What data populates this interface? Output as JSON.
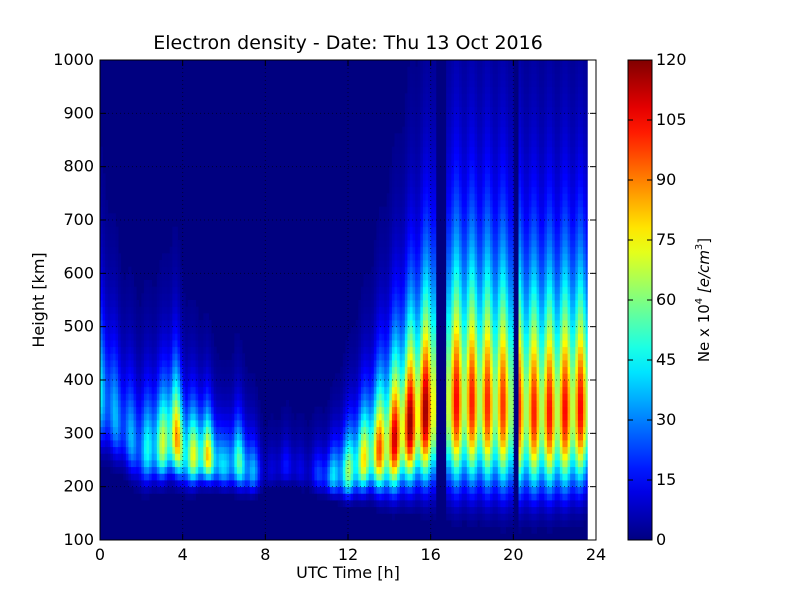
{
  "chart_data": {
    "type": "heatmap",
    "title": "Electron density - Date: Thu 13 Oct 2016",
    "xlabel": "UTC Time [h]",
    "ylabel": "Height [km]",
    "xlim": [
      0,
      24
    ],
    "ylim": [
      100,
      1000
    ],
    "x_ticks": [
      "0",
      "4",
      "8",
      "12",
      "16",
      "20",
      "24"
    ],
    "y_ticks": [
      "100",
      "200",
      "300",
      "400",
      "500",
      "600",
      "700",
      "800",
      "900",
      "1000"
    ],
    "grid": true,
    "colormap": "jet",
    "colorbar": {
      "label_prefix": "Ne x 10",
      "label_exp": "4",
      "label_unit": "[e/cm",
      "label_unit_exp": "3",
      "label_close": "]",
      "range": [
        0,
        120
      ],
      "ticks": [
        "0",
        "15",
        "30",
        "45",
        "60",
        "75",
        "90",
        "105",
        "120"
      ]
    },
    "data_extent_hours": [
      0,
      23.6
    ],
    "gap_hours": [
      16.35,
      16.6,
      20.15
    ],
    "profile_model": "Chapman-like vertical profiles; peak height (km), peak density (Ne x 10^4 e/cm^3), scale height (km) per UTC hour",
    "profiles": [
      {
        "t": 0.0,
        "hmax": 380,
        "nmax": 45,
        "H": 60
      },
      {
        "t": 1.0,
        "hmax": 320,
        "nmax": 35,
        "H": 45
      },
      {
        "t": 2.0,
        "hmax": 270,
        "nmax": 40,
        "H": 40
      },
      {
        "t": 3.0,
        "hmax": 280,
        "nmax": 70,
        "H": 40
      },
      {
        "t": 3.6,
        "hmax": 300,
        "nmax": 95,
        "H": 45
      },
      {
        "t": 4.2,
        "hmax": 260,
        "nmax": 70,
        "H": 35
      },
      {
        "t": 5.2,
        "hmax": 260,
        "nmax": 85,
        "H": 30
      },
      {
        "t": 6.0,
        "hmax": 240,
        "nmax": 40,
        "H": 25
      },
      {
        "t": 6.6,
        "hmax": 250,
        "nmax": 60,
        "H": 30
      },
      {
        "t": 7.3,
        "hmax": 230,
        "nmax": 45,
        "H": 25
      },
      {
        "t": 8.0,
        "hmax": 230,
        "nmax": 8,
        "H": 20
      },
      {
        "t": 9.0,
        "hmax": 240,
        "nmax": 18,
        "H": 20
      },
      {
        "t": 10.0,
        "hmax": 230,
        "nmax": 10,
        "H": 20
      },
      {
        "t": 11.0,
        "hmax": 220,
        "nmax": 35,
        "H": 20
      },
      {
        "t": 12.0,
        "hmax": 230,
        "nmax": 65,
        "H": 30
      },
      {
        "t": 13.0,
        "hmax": 260,
        "nmax": 85,
        "H": 40
      },
      {
        "t": 14.0,
        "hmax": 280,
        "nmax": 110,
        "H": 55
      },
      {
        "t": 15.0,
        "hmax": 320,
        "nmax": 120,
        "H": 70
      },
      {
        "t": 16.0,
        "hmax": 350,
        "nmax": 118,
        "H": 85
      },
      {
        "t": 17.0,
        "hmax": 360,
        "nmax": 108,
        "H": 95
      },
      {
        "t": 18.0,
        "hmax": 360,
        "nmax": 104,
        "H": 95
      },
      {
        "t": 19.0,
        "hmax": 355,
        "nmax": 102,
        "H": 95
      },
      {
        "t": 20.0,
        "hmax": 350,
        "nmax": 100,
        "H": 95
      },
      {
        "t": 21.0,
        "hmax": 340,
        "nmax": 104,
        "H": 90
      },
      {
        "t": 22.0,
        "hmax": 340,
        "nmax": 106,
        "H": 90
      },
      {
        "t": 23.0,
        "hmax": 345,
        "nmax": 108,
        "H": 90
      },
      {
        "t": 23.6,
        "hmax": 350,
        "nmax": 106,
        "H": 85
      }
    ]
  }
}
